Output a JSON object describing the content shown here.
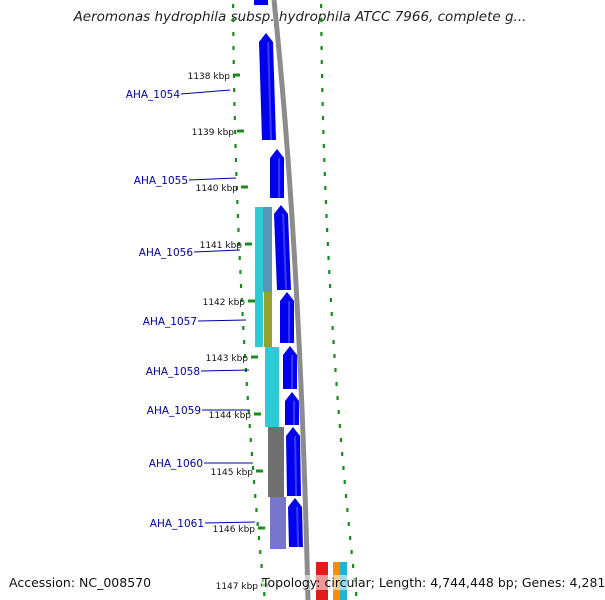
{
  "title": "Aeromonas hydrophila subsp. hydrophila ATCC 7966, complete g...",
  "accession": "Accession: NC_008570",
  "topology": "Topology: circular; Length: 4,744,448 bp; Genes: 4,281",
  "colors": {
    "gene_blue": "#0000ee",
    "label_blue": "#0000aa",
    "tick_green": "#1a8c1a",
    "track_gray": "#8c8c8c",
    "cyan": "#19c8d2",
    "olive": "#8c9a1e",
    "dark_gray": "#646464",
    "slate_blue": "#6a6ac8",
    "steel": "#4a8cb4"
  },
  "ruler": [
    {
      "label": "1138 kbp"
    },
    {
      "label": "1139 kbp"
    },
    {
      "label": "1140 kbp"
    },
    {
      "label": "1141 kbp"
    },
    {
      "label": "1142 kbp"
    },
    {
      "label": "1143 kbp"
    },
    {
      "label": "1144 kbp"
    },
    {
      "label": "1145 kbp"
    },
    {
      "label": "1146 kbp"
    },
    {
      "label": "1147 kbp"
    }
  ],
  "genes": [
    {
      "label": "AHA_1054"
    },
    {
      "label": "AHA_1055"
    },
    {
      "label": "AHA_1056"
    },
    {
      "label": "AHA_1057"
    },
    {
      "label": "AHA_1058"
    },
    {
      "label": "AHA_1059"
    },
    {
      "label": "AHA_1060"
    },
    {
      "label": "AHA_1061"
    }
  ]
}
